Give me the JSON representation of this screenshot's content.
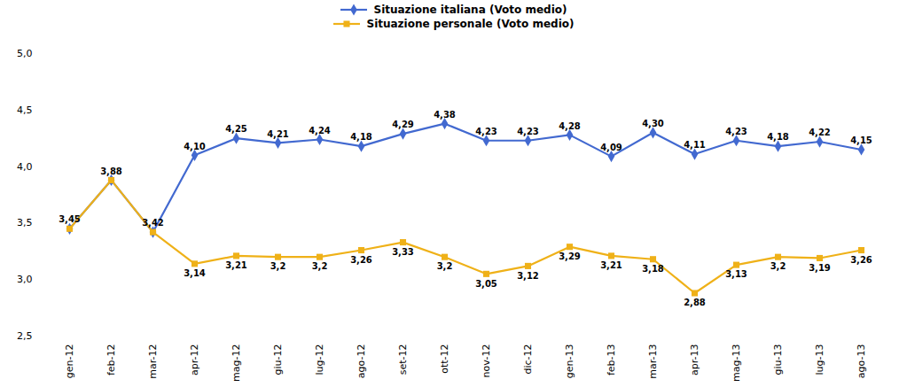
{
  "chart_data": {
    "type": "line",
    "categories": [
      "gen-12",
      "feb-12",
      "mar-12",
      "apr-12",
      "mag-12",
      "giu-12",
      "lug-12",
      "ago-12",
      "set-12",
      "ott-12",
      "nov-12",
      "dic-12",
      "gen-13",
      "feb-13",
      "mar-13",
      "apr-13",
      "mag-13",
      "giu-13",
      "lug-13",
      "ago-13"
    ],
    "series": [
      {
        "name": "Situazione italiana (Voto medio)",
        "marker": "diamond",
        "values": [
          3.45,
          3.88,
          3.42,
          4.1,
          4.25,
          4.21,
          4.24,
          4.18,
          4.29,
          4.38,
          4.23,
          4.23,
          4.28,
          4.09,
          4.3,
          4.11,
          4.23,
          4.18,
          4.22,
          4.15
        ],
        "value_labels": [
          "3,45",
          "3,88",
          "3,42",
          "4,10",
          "4,25",
          "4,21",
          "4,24",
          "4,18",
          "4,29",
          "4,38",
          "4,23",
          "4,23",
          "4,28",
          "4,09",
          "4,30",
          "4,11",
          "4,23",
          "4,18",
          "4,22",
          "4,15"
        ]
      },
      {
        "name": "Situazione personale (Voto medio)",
        "marker": "square",
        "values": [
          3.45,
          3.88,
          3.42,
          3.14,
          3.21,
          3.2,
          3.2,
          3.26,
          3.33,
          3.2,
          3.05,
          3.12,
          3.29,
          3.21,
          3.18,
          2.88,
          3.13,
          3.2,
          3.19,
          3.26
        ],
        "value_labels": [
          null,
          null,
          null,
          "3,14",
          "3,21",
          "3,2",
          "3,2",
          "3,26",
          "3,33",
          "3,2",
          "3,05",
          "3,12",
          "3,29",
          "3,21",
          "3,18",
          "2,88",
          "3,13",
          "3,2",
          "3,19",
          "3,26"
        ]
      }
    ],
    "ylim": [
      2.5,
      5.0
    ],
    "yticks": [
      {
        "value": 2.5,
        "label": "2,5"
      },
      {
        "value": 3.0,
        "label": "3,0"
      },
      {
        "value": 3.5,
        "label": "3,5"
      },
      {
        "value": 4.0,
        "label": "4,0"
      },
      {
        "value": 4.5,
        "label": "4,5"
      },
      {
        "value": 5.0,
        "label": "5,0"
      }
    ],
    "grid": false,
    "legend": "top",
    "data_labels": true
  }
}
